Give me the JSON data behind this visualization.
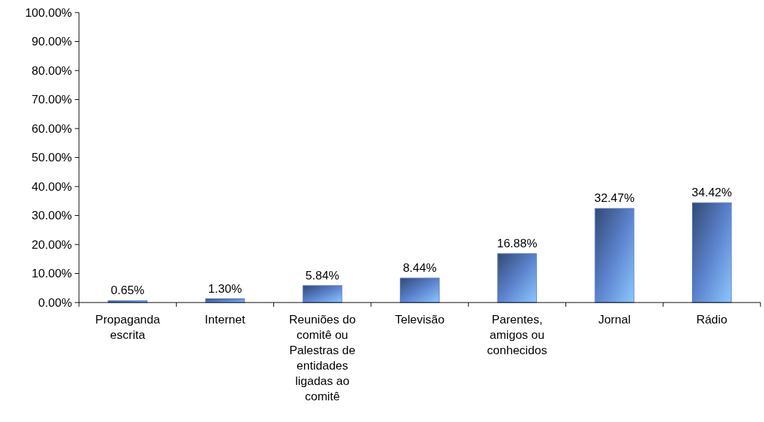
{
  "chart_data": {
    "type": "bar",
    "categories": [
      "Propaganda escrita",
      "Internet",
      "Reuniões do comitê ou Palestras de entidades ligadas ao comitê",
      "Televisão",
      "Parentes, amigos ou conhecidos",
      "Jornal",
      "Rádio"
    ],
    "values": [
      0.65,
      1.3,
      5.84,
      8.44,
      16.88,
      32.47,
      34.42
    ],
    "value_labels": [
      "0.65%",
      "1.30%",
      "5.84%",
      "8.44%",
      "16.88%",
      "32.47%",
      "34.42%"
    ],
    "color": "#5b82cc",
    "ylim": [
      0,
      100
    ],
    "yticks": [
      {
        "value": 0,
        "label": "0.00%"
      },
      {
        "value": 10,
        "label": "10.00%"
      },
      {
        "value": 20,
        "label": "20.00%"
      },
      {
        "value": 30,
        "label": "30.00%"
      },
      {
        "value": 40,
        "label": "40.00%"
      },
      {
        "value": 50,
        "label": "50.00%"
      },
      {
        "value": 60,
        "label": "60.00%"
      },
      {
        "value": 70,
        "label": "70.00%"
      },
      {
        "value": 80,
        "label": "80.00%"
      },
      {
        "value": 90,
        "label": "90.00%"
      },
      {
        "value": 100,
        "label": "100.00%"
      }
    ],
    "grid": false
  }
}
